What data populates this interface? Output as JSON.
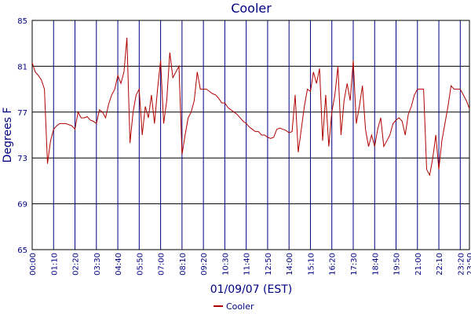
{
  "chart_data": {
    "type": "line",
    "title": "Cooler",
    "x_label": "01/09/07 (EST)",
    "y_label": "Degrees F",
    "categories": [
      "00:00",
      null,
      null,
      null,
      null,
      null,
      null,
      "01:10",
      null,
      null,
      null,
      null,
      null,
      null,
      "02:20",
      null,
      null,
      null,
      null,
      null,
      null,
      "03:30",
      null,
      null,
      null,
      null,
      null,
      null,
      "04:40",
      null,
      null,
      null,
      null,
      null,
      null,
      "05:50",
      null,
      null,
      null,
      null,
      null,
      null,
      "07:00",
      null,
      null,
      null,
      null,
      null,
      null,
      "08:10",
      null,
      null,
      null,
      null,
      null,
      null,
      "09:20",
      null,
      null,
      null,
      null,
      null,
      null,
      "10:30",
      null,
      null,
      null,
      null,
      null,
      null,
      "11:40",
      null,
      null,
      null,
      null,
      null,
      null,
      "12:50",
      null,
      null,
      null,
      null,
      null,
      null,
      "14:00",
      null,
      null,
      null,
      null,
      null,
      null,
      "15:10",
      null,
      null,
      null,
      null,
      null,
      null,
      "16:20",
      null,
      null,
      null,
      null,
      null,
      null,
      "17:30",
      null,
      null,
      null,
      null,
      null,
      null,
      "18:40",
      null,
      null,
      null,
      null,
      null,
      null,
      "19:50",
      null,
      null,
      null,
      null,
      null,
      null,
      "21:00",
      null,
      null,
      null,
      null,
      null,
      null,
      "22:10",
      null,
      null,
      null,
      null,
      null,
      null,
      "23:20",
      null,
      null,
      "23:50"
    ],
    "series": [
      {
        "name": "Cooler",
        "color": "#b00000",
        "values": [
          81.3,
          80.5,
          80.2,
          79.8,
          79,
          72.5,
          74.5,
          75.5,
          75.8,
          76,
          76,
          76,
          75.9,
          75.8,
          75.5,
          77,
          76.5,
          76.5,
          76.6,
          76.3,
          76.2,
          76,
          77.2,
          77,
          76.5,
          77.7,
          78.5,
          79,
          80.2,
          79.5,
          80.5,
          83.5,
          74.3,
          77,
          78.5,
          79,
          75,
          77.5,
          76.5,
          78.5,
          76,
          79,
          81.5,
          76,
          78,
          82.2,
          80,
          80.5,
          81,
          73.3,
          75,
          76.5,
          77,
          78,
          80.5,
          79,
          79,
          79,
          78.8,
          78.6,
          78.5,
          78.2,
          77.8,
          77.8,
          77.4,
          77.2,
          77,
          76.8,
          76.5,
          76.2,
          76,
          75.7,
          75.5,
          75.3,
          75.3,
          75,
          75,
          74.8,
          74.7,
          74.8,
          75.5,
          75.6,
          75.5,
          75.4,
          75.2,
          75.3,
          78.5,
          73.5,
          75.5,
          77.5,
          79,
          78.8,
          80.5,
          79.5,
          80.8,
          74.5,
          78.5,
          74,
          77,
          78.5,
          81,
          75,
          78,
          79.5,
          78,
          81.5,
          76,
          77.5,
          79.3,
          75.5,
          74,
          75,
          74,
          75.5,
          76.5,
          74,
          74.5,
          75,
          76,
          76.3,
          76.5,
          76.2,
          75,
          76.8,
          77.5,
          78.5,
          79,
          79,
          79,
          72,
          71.5,
          73,
          75,
          72,
          74.5,
          76,
          77.5,
          79.3,
          79,
          79,
          79,
          78.5,
          78,
          77.3
        ]
      }
    ],
    "ylim": [
      65,
      85
    ],
    "yticks": [
      65,
      69,
      73,
      77,
      81,
      85
    ],
    "grid": true,
    "legend": "bottom"
  }
}
